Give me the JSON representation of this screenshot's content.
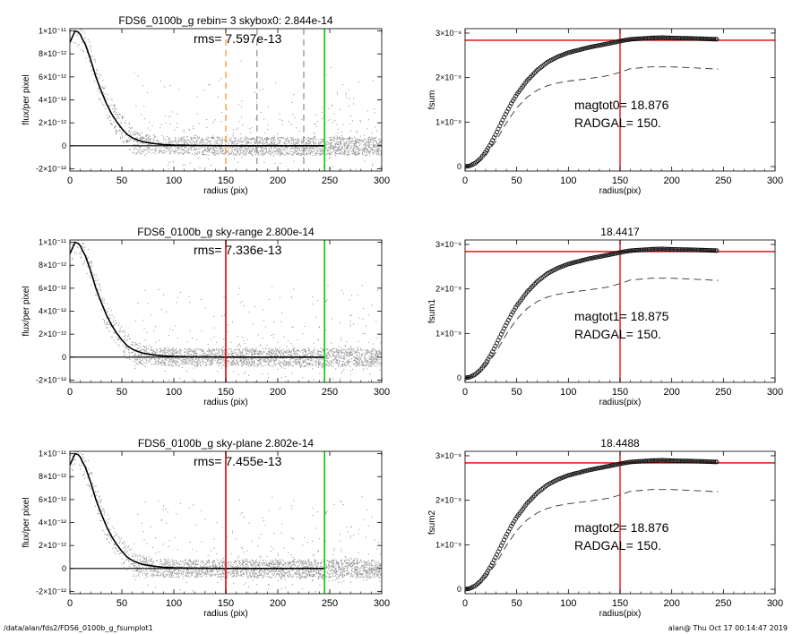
{
  "footer": {
    "path": "/data/alan/fds2/FDS6_0100b_g_fsumplot1",
    "stamp": "alan@  Thu Oct 17 00:14:47 2019"
  },
  "chart_data": [
    {
      "type": "scatter",
      "title": "FDS6_0100b_g rebin= 3    skybox0:  2.844e-14",
      "annotation": "rms= 7.597e-13",
      "xlabel": "radius (pix)",
      "ylabel": "flux/per pixel",
      "xlim": [
        0,
        300
      ],
      "ylim": [
        -2.2e-12,
        1.02e-11
      ],
      "xticks": [
        0,
        50,
        100,
        150,
        200,
        250,
        300
      ],
      "xtick_labels": [
        "0",
        "50",
        "100",
        "150",
        "200",
        "250",
        "300"
      ],
      "yticks": [
        -2e-12,
        0,
        2e-12,
        4e-12,
        6e-12,
        8e-12,
        1e-11
      ],
      "ytick_labels": [
        "-2×10⁻¹²",
        "0",
        "2×10⁻¹²",
        "4×10⁻¹²",
        "6×10⁻¹²",
        "8×10⁻¹²",
        "1×10⁻¹¹"
      ],
      "profile_x": [
        0,
        5,
        8,
        10,
        12,
        15,
        20,
        25,
        30,
        35,
        40,
        45,
        50,
        55,
        60,
        65,
        70,
        80,
        90,
        100,
        120,
        140,
        160,
        180,
        200,
        220,
        245
      ],
      "profile_y": [
        9e-12,
        1e-11,
        9.9e-12,
        9.7e-12,
        9.3e-12,
        8.8e-12,
        7.5e-12,
        6e-12,
        4.8e-12,
        3.7e-12,
        2.8e-12,
        2.1e-12,
        1.5e-12,
        1e-12,
        7e-13,
        5e-13,
        3.5e-13,
        2e-13,
        1e-13,
        5e-14,
        2e-14,
        1e-14,
        0,
        0,
        0,
        0,
        0
      ],
      "vlines": [
        {
          "x": 150,
          "color": "#ff8c1a",
          "dash": true
        },
        {
          "x": 180,
          "color": "#888888",
          "dash": true
        },
        {
          "x": 225,
          "color": "#888888",
          "dash": true
        },
        {
          "x": 245,
          "color": "#00cc00",
          "dash": false
        }
      ],
      "scatter_end": 300
    },
    {
      "type": "line",
      "title": "",
      "xlabel": "radius(pix)",
      "ylabel": "fsum",
      "xlim": [
        0,
        300
      ],
      "ylim": [
        -1e-09,
        3.1e-08
      ],
      "xticks": [
        0,
        50,
        100,
        150,
        200,
        250,
        300
      ],
      "xtick_labels": [
        "0",
        "50",
        "100",
        "150",
        "200",
        "250",
        "300"
      ],
      "yticks": [
        0,
        1e-08,
        2e-08,
        3e-08
      ],
      "ytick_labels": [
        "0",
        "1×10⁻⁸",
        "2×10⁻⁸",
        "3×10⁻⁸"
      ],
      "annotations": [
        "magtot0=  18.876",
        "RADGAL=    150."
      ],
      "curve_x": [
        0,
        5,
        10,
        15,
        20,
        25,
        30,
        35,
        40,
        45,
        50,
        60,
        70,
        80,
        90,
        100,
        120,
        140,
        150,
        160,
        180,
        190,
        200,
        220,
        245
      ],
      "curve_y": [
        0,
        2e-10,
        8e-10,
        1.8e-09,
        3.3e-09,
        5.2e-09,
        7.4e-09,
        9.8e-09,
        1.21e-08,
        1.43e-08,
        1.62e-08,
        1.93e-08,
        2.17e-08,
        2.35e-08,
        2.47e-08,
        2.56e-08,
        2.68e-08,
        2.77e-08,
        2.82e-08,
        2.86e-08,
        2.89e-08,
        2.9e-08,
        2.89e-08,
        2.88e-08,
        2.86e-08
      ],
      "dashed_x": [
        0,
        10,
        20,
        30,
        40,
        50,
        60,
        70,
        80,
        90,
        100,
        120,
        140,
        150,
        160,
        180,
        200,
        220,
        245
      ],
      "dashed_y": [
        0,
        5e-10,
        2.5e-09,
        5.8e-09,
        9.8e-09,
        1.32e-08,
        1.56e-08,
        1.72e-08,
        1.82e-08,
        1.88e-08,
        1.92e-08,
        1.98e-08,
        2.05e-08,
        2.12e-08,
        2.2e-08,
        2.24e-08,
        2.24e-08,
        2.22e-08,
        2.19e-08
      ],
      "hline": 2.84e-08,
      "vline": 150
    },
    {
      "type": "scatter",
      "title": "FDS6_0100b_g sky-range  2.800e-14",
      "annotation": "rms= 7.336e-13",
      "xlabel": "radius (pix)",
      "ylabel": "flux/per pixel",
      "xlim": [
        0,
        300
      ],
      "ylim": [
        -2.2e-12,
        1.02e-11
      ],
      "xticks": [
        0,
        50,
        100,
        150,
        200,
        250,
        300
      ],
      "xtick_labels": [
        "0",
        "50",
        "100",
        "150",
        "200",
        "250",
        "300"
      ],
      "yticks": [
        -2e-12,
        0,
        2e-12,
        4e-12,
        6e-12,
        8e-12,
        1e-11
      ],
      "ytick_labels": [
        "-2×10⁻¹²",
        "0",
        "2×10⁻¹²",
        "4×10⁻¹²",
        "6×10⁻¹²",
        "8×10⁻¹²",
        "1×10⁻¹¹"
      ],
      "profile_x": [
        0,
        5,
        8,
        10,
        12,
        15,
        20,
        25,
        30,
        35,
        40,
        45,
        50,
        55,
        60,
        65,
        70,
        80,
        90,
        100,
        120,
        140,
        160,
        180,
        200,
        220,
        245
      ],
      "profile_y": [
        9e-12,
        1e-11,
        9.9e-12,
        9.7e-12,
        9.3e-12,
        8.8e-12,
        7.5e-12,
        6e-12,
        4.8e-12,
        3.7e-12,
        2.8e-12,
        2.1e-12,
        1.5e-12,
        1e-12,
        7e-13,
        5e-13,
        3.5e-13,
        2e-13,
        1e-13,
        5e-14,
        2e-14,
        1e-14,
        0,
        0,
        0,
        0,
        0
      ],
      "vlines": [
        {
          "x": 150,
          "color": "#e00000",
          "dash": false
        },
        {
          "x": 245,
          "color": "#00cc00",
          "dash": false
        }
      ],
      "scatter_end": 300
    },
    {
      "type": "line",
      "title": "18.4417",
      "xlabel": "radius(pix)",
      "ylabel": "fsum1",
      "xlim": [
        0,
        300
      ],
      "ylim": [
        -1e-09,
        3.1e-08
      ],
      "xticks": [
        0,
        50,
        100,
        150,
        200,
        250,
        300
      ],
      "xtick_labels": [
        "0",
        "50",
        "100",
        "150",
        "200",
        "250",
        "300"
      ],
      "yticks": [
        0,
        1e-08,
        2e-08,
        3e-08
      ],
      "ytick_labels": [
        "0",
        "1×10⁻⁸",
        "2×10⁻⁸",
        "3×10⁻⁸"
      ],
      "annotations": [
        "magtot1=  18.875",
        "RADGAL=    150."
      ],
      "curve_x": [
        0,
        5,
        10,
        15,
        20,
        25,
        30,
        35,
        40,
        45,
        50,
        60,
        70,
        80,
        90,
        100,
        120,
        140,
        150,
        160,
        180,
        190,
        200,
        220,
        245
      ],
      "curve_y": [
        0,
        2e-10,
        8e-10,
        1.8e-09,
        3.3e-09,
        5.2e-09,
        7.4e-09,
        9.8e-09,
        1.21e-08,
        1.43e-08,
        1.62e-08,
        1.93e-08,
        2.17e-08,
        2.35e-08,
        2.47e-08,
        2.56e-08,
        2.68e-08,
        2.77e-08,
        2.82e-08,
        2.86e-08,
        2.89e-08,
        2.9e-08,
        2.89e-08,
        2.88e-08,
        2.86e-08
      ],
      "dashed_x": [
        0,
        10,
        20,
        30,
        40,
        50,
        60,
        70,
        80,
        90,
        100,
        120,
        140,
        150,
        160,
        180,
        200,
        220,
        245
      ],
      "dashed_y": [
        0,
        5e-10,
        2.5e-09,
        5.8e-09,
        9.8e-09,
        1.32e-08,
        1.56e-08,
        1.72e-08,
        1.82e-08,
        1.88e-08,
        1.92e-08,
        1.98e-08,
        2.05e-08,
        2.12e-08,
        2.2e-08,
        2.24e-08,
        2.24e-08,
        2.22e-08,
        2.19e-08
      ],
      "hline": 2.84e-08,
      "vline": 150
    },
    {
      "type": "scatter",
      "title": "FDS6_0100b_g sky-plane  2.802e-14",
      "annotation": "rms= 7.455e-13",
      "xlabel": "radius (pix)",
      "ylabel": "flux/per pixel",
      "xlim": [
        0,
        300
      ],
      "ylim": [
        -2.2e-12,
        1.02e-11
      ],
      "xticks": [
        0,
        50,
        100,
        150,
        200,
        250,
        300
      ],
      "xtick_labels": [
        "0",
        "50",
        "100",
        "150",
        "200",
        "250",
        "300"
      ],
      "yticks": [
        -2e-12,
        0,
        2e-12,
        4e-12,
        6e-12,
        8e-12,
        1e-11
      ],
      "ytick_labels": [
        "-2×10⁻¹²",
        "0",
        "2×10⁻¹²",
        "4×10⁻¹²",
        "6×10⁻¹²",
        "8×10⁻¹²",
        "1×10⁻¹¹"
      ],
      "profile_x": [
        0,
        5,
        8,
        10,
        12,
        15,
        20,
        25,
        30,
        35,
        40,
        45,
        50,
        55,
        60,
        65,
        70,
        80,
        90,
        100,
        120,
        140,
        160,
        180,
        200,
        220,
        245
      ],
      "profile_y": [
        9e-12,
        1e-11,
        9.9e-12,
        9.7e-12,
        9.3e-12,
        8.8e-12,
        7.5e-12,
        6e-12,
        4.8e-12,
        3.7e-12,
        2.8e-12,
        2.1e-12,
        1.5e-12,
        1e-12,
        7e-13,
        5e-13,
        3.5e-13,
        2e-13,
        1e-13,
        5e-14,
        2e-14,
        1e-14,
        0,
        0,
        0,
        0,
        0
      ],
      "vlines": [
        {
          "x": 150,
          "color": "#e00000",
          "dash": false
        },
        {
          "x": 245,
          "color": "#00cc00",
          "dash": false
        }
      ],
      "scatter_end": 300
    },
    {
      "type": "line",
      "title": "18.4488",
      "xlabel": "radius(pix)",
      "ylabel": "fsum2",
      "xlim": [
        0,
        300
      ],
      "ylim": [
        -1e-09,
        3.1e-08
      ],
      "xticks": [
        0,
        50,
        100,
        150,
        200,
        250,
        300
      ],
      "xtick_labels": [
        "0",
        "50",
        "100",
        "150",
        "200",
        "250",
        "300"
      ],
      "yticks": [
        0,
        1e-08,
        2e-08,
        3e-08
      ],
      "ytick_labels": [
        "0",
        "1×10⁻⁸",
        "2×10⁻⁸",
        "3×10⁻⁸"
      ],
      "annotations": [
        "magtot2=  18.876",
        "RADGAL=    150."
      ],
      "curve_x": [
        0,
        5,
        10,
        15,
        20,
        25,
        30,
        35,
        40,
        45,
        50,
        60,
        70,
        80,
        90,
        100,
        120,
        140,
        150,
        160,
        180,
        190,
        200,
        220,
        245
      ],
      "curve_y": [
        0,
        2e-10,
        8e-10,
        1.8e-09,
        3.3e-09,
        5.2e-09,
        7.4e-09,
        9.8e-09,
        1.21e-08,
        1.43e-08,
        1.62e-08,
        1.93e-08,
        2.17e-08,
        2.35e-08,
        2.47e-08,
        2.56e-08,
        2.68e-08,
        2.77e-08,
        2.82e-08,
        2.86e-08,
        2.89e-08,
        2.9e-08,
        2.89e-08,
        2.88e-08,
        2.86e-08
      ],
      "dashed_x": [
        0,
        10,
        20,
        30,
        40,
        50,
        60,
        70,
        80,
        90,
        100,
        120,
        140,
        150,
        160,
        180,
        200,
        220,
        245
      ],
      "dashed_y": [
        0,
        5e-10,
        2.5e-09,
        5.8e-09,
        9.8e-09,
        1.32e-08,
        1.56e-08,
        1.72e-08,
        1.82e-08,
        1.88e-08,
        1.92e-08,
        1.98e-08,
        2.05e-08,
        2.12e-08,
        2.2e-08,
        2.24e-08,
        2.24e-08,
        2.22e-08,
        2.19e-08
      ],
      "hline": 2.84e-08,
      "vline": 150
    }
  ]
}
